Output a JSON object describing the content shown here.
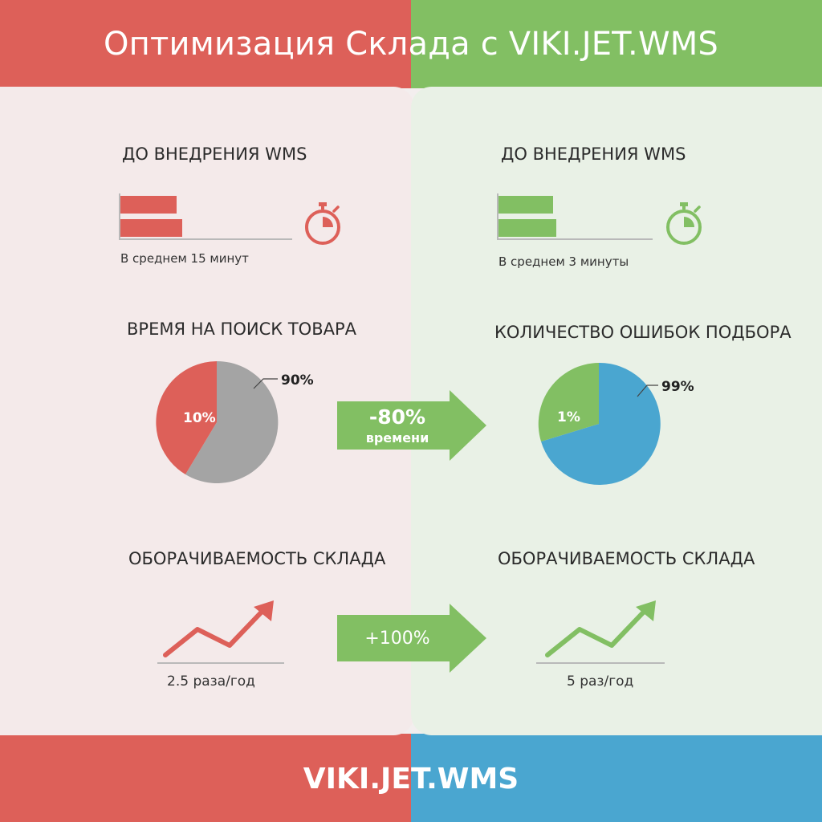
{
  "title": "Оптимизация Склада с VIKI.JET.WMS",
  "footer": "VIKI.JET.WMS",
  "colors": {
    "red": "#dd6059",
    "green": "#82bf63",
    "blue": "#4aa6d0",
    "gray": "#a4a4a4"
  },
  "left": {
    "section1": {
      "heading": "ДО ВНЕДРЕНИЯ WMS",
      "caption": "В среднем 15 минут",
      "icon": "stopwatch-icon"
    },
    "section2": {
      "heading": "ВРЕМЯ НА ПОИСК ТОВАРА",
      "pie": [
        {
          "label": "10%",
          "value": 10,
          "color": "#dd6059"
        },
        {
          "label": "90%",
          "value": 90,
          "color": "#a4a4a4"
        }
      ]
    },
    "section3": {
      "heading": "ОБОРАЧИВАЕМОСТЬ СКЛАДА",
      "caption": "2.5 раза/год",
      "icon": "trend-up-arrow-icon"
    }
  },
  "right": {
    "section1": {
      "heading": "ДО ВНЕДРЕНИЯ WMS",
      "caption": "В среднем 3 минуты",
      "icon": "stopwatch-icon"
    },
    "section2": {
      "heading": "КОЛИЧЕСТВО ОШИБОК ПОДБОРА",
      "pie": [
        {
          "label": "1%",
          "value": 1,
          "color": "#82bf63"
        },
        {
          "label": "99%",
          "value": 99,
          "color": "#4aa6d0"
        }
      ]
    },
    "section3": {
      "heading": "ОБОРАЧИВАЕМОСТЬ СКЛАДА",
      "caption": "5 раз/год",
      "icon": "trend-up-arrow-icon"
    }
  },
  "arrows": {
    "middle": {
      "value": "-80%",
      "sub": "времени"
    },
    "bottom": {
      "value": "+100%"
    }
  }
}
